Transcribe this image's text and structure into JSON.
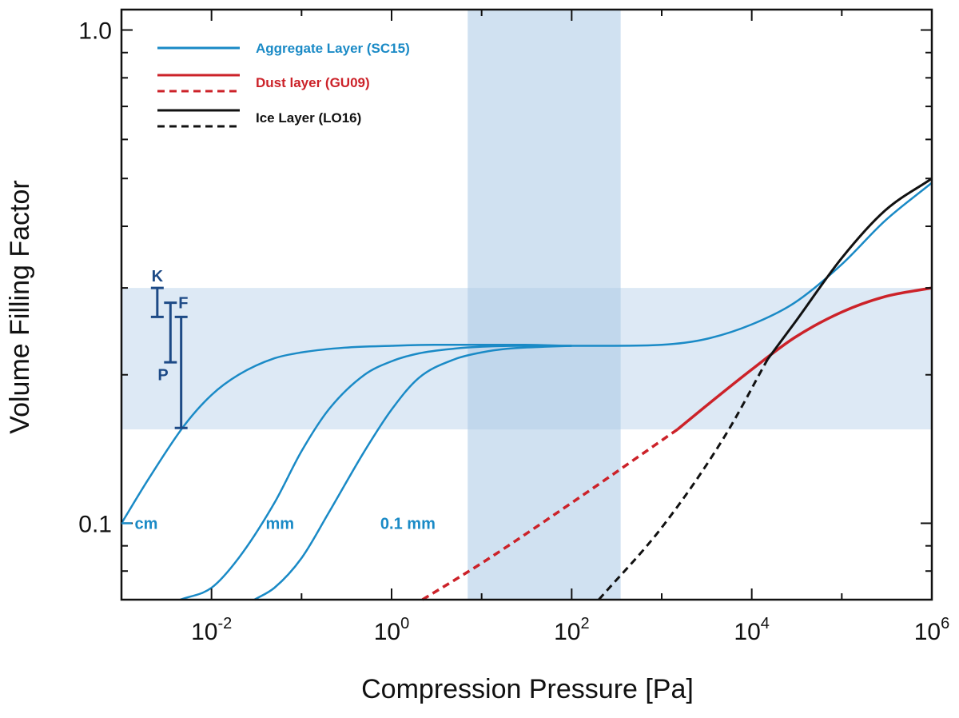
{
  "chart_data": {
    "type": "line",
    "xscale": "log",
    "yscale": "log",
    "xlim": [
      0.001,
      1000000
    ],
    "ylim": [
      0.07,
      1.1
    ],
    "xlabel": "Compression Pressure [Pa]",
    "ylabel": "Volume Filling Factor",
    "x_ticks": [
      {
        "base": "10",
        "exp": "-2",
        "value": 0.01
      },
      {
        "base": "10",
        "exp": "0",
        "value": 1
      },
      {
        "base": "10",
        "exp": "2",
        "value": 100
      },
      {
        "base": "10",
        "exp": "4",
        "value": 10000
      },
      {
        "base": "10",
        "exp": "6",
        "value": 1000000
      }
    ],
    "y_ticks": [
      {
        "label": "1.0",
        "value": 1.0
      },
      {
        "label": "0.1",
        "value": 0.1
      }
    ],
    "shaded_regions": [
      {
        "axis": "x",
        "range": [
          7,
          350
        ],
        "color": "#a9c8e6"
      },
      {
        "axis": "y",
        "range": [
          0.155,
          0.3
        ],
        "color": "#a9c8e6"
      }
    ],
    "legend": [
      {
        "label": "Aggregate Layer (SC15)",
        "color": "#1a8ac6",
        "styles": [
          "solid"
        ]
      },
      {
        "label": "Dust layer (GU09)",
        "color": "#cc2229",
        "styles": [
          "solid",
          "dashed"
        ]
      },
      {
        "label": "Ice Layer (LO16)",
        "color": "#111111",
        "styles": [
          "solid",
          "dashed"
        ]
      }
    ],
    "series": [
      {
        "name": "Aggregate Layer (SC15) cm",
        "color": "#1a8ac6",
        "style": "solid",
        "width": 2.5,
        "x": [
          0.001,
          0.002,
          0.005,
          0.01,
          0.02,
          0.05,
          0.1,
          0.3,
          1,
          3,
          10,
          30,
          100,
          300,
          1000,
          3000,
          10000,
          30000,
          100000,
          300000,
          1000000
        ],
        "y": [
          0.1,
          0.123,
          0.158,
          0.182,
          0.2,
          0.216,
          0.222,
          0.227,
          0.229,
          0.23,
          0.23,
          0.23,
          0.229,
          0.229,
          0.23,
          0.236,
          0.253,
          0.28,
          0.335,
          0.41,
          0.49
        ]
      },
      {
        "name": "Aggregate Layer (SC15) mm",
        "color": "#1a8ac6",
        "style": "solid",
        "width": 2.5,
        "x": [
          0.0045,
          0.01,
          0.02,
          0.05,
          0.1,
          0.2,
          0.5,
          1,
          2,
          5,
          10,
          30,
          100
        ],
        "y": [
          0.07,
          0.074,
          0.085,
          0.11,
          0.14,
          0.17,
          0.2,
          0.213,
          0.221,
          0.226,
          0.228,
          0.229,
          0.229
        ]
      },
      {
        "name": "Aggregate Layer (SC15) 0.1 mm",
        "color": "#1a8ac6",
        "style": "solid",
        "width": 2.5,
        "x": [
          0.03,
          0.05,
          0.1,
          0.2,
          0.5,
          1,
          2,
          5,
          10,
          20,
          50,
          100
        ],
        "y": [
          0.07,
          0.074,
          0.085,
          0.105,
          0.14,
          0.17,
          0.197,
          0.215,
          0.222,
          0.226,
          0.228,
          0.229
        ]
      },
      {
        "name": "Dust layer (GU09) measured",
        "color": "#cc2229",
        "style": "solid",
        "width": 3.5,
        "x": [
          1500,
          3000,
          10000,
          30000,
          100000,
          300000,
          1000000
        ],
        "y": [
          0.155,
          0.172,
          0.205,
          0.238,
          0.268,
          0.288,
          0.3
        ]
      },
      {
        "name": "Dust layer (GU09) extrapolated",
        "color": "#cc2229",
        "style": "dashed",
        "width": 3.5,
        "x": [
          2.2,
          10,
          100,
          1500
        ],
        "y": [
          0.07,
          0.083,
          0.11,
          0.155
        ]
      },
      {
        "name": "Ice Layer (LO16) measured",
        "color": "#111111",
        "style": "solid",
        "width": 3,
        "x": [
          15000,
          30000,
          100000,
          300000,
          1000000
        ],
        "y": [
          0.215,
          0.255,
          0.345,
          0.43,
          0.5
        ]
      },
      {
        "name": "Ice Layer (LO16) extrapolated",
        "color": "#111111",
        "style": "dashed",
        "width": 3,
        "x": [
          200,
          1000,
          5000,
          15000
        ],
        "y": [
          0.07,
          0.098,
          0.15,
          0.215
        ]
      }
    ],
    "curve_labels": [
      {
        "text": "cm",
        "x": 0.0014,
        "y": 0.1
      },
      {
        "text": "mm",
        "x": 0.04,
        "y": 0.1
      },
      {
        "text": "0.1 mm",
        "x": 0.75,
        "y": 0.1
      }
    ],
    "range_bars": [
      {
        "label": "K",
        "x": 0.0025,
        "y_range": [
          0.262,
          0.3
        ],
        "label_pos": "top"
      },
      {
        "label": "F",
        "x": 0.0035,
        "y_range": [
          0.212,
          0.28
        ],
        "label_pos": "right"
      },
      {
        "label": "P",
        "x": 0.0046,
        "y_range": [
          0.156,
          0.262
        ],
        "label_pos": "left"
      }
    ],
    "range_bar_color": "#1d4a86"
  }
}
